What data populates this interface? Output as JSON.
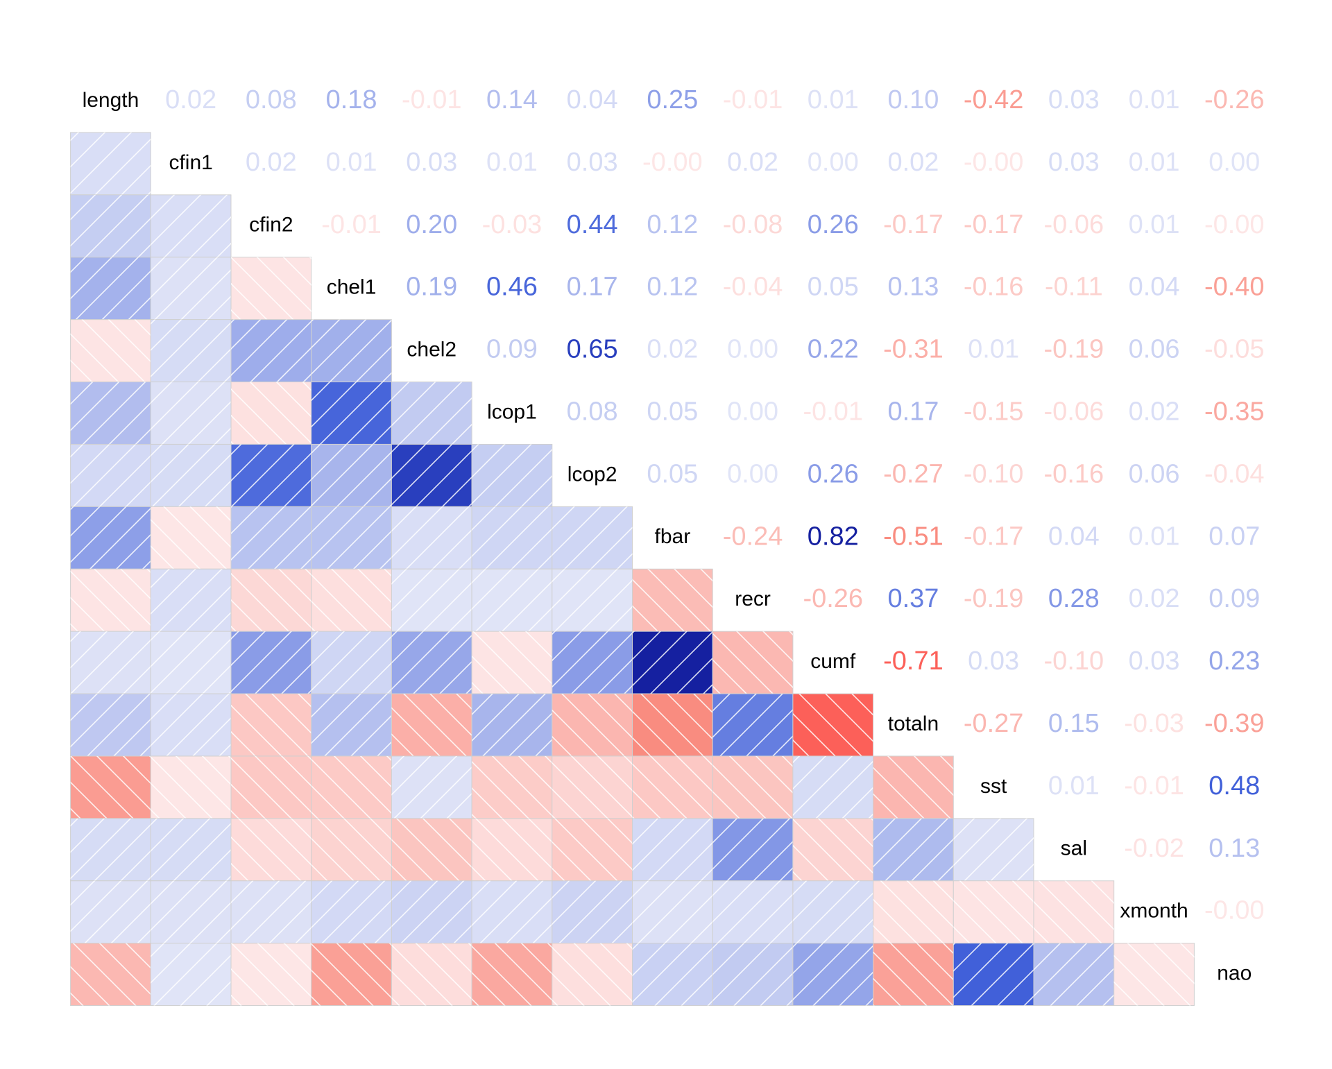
{
  "chart_data": {
    "type": "corrgram",
    "variables": [
      "length",
      "cfin1",
      "cfin2",
      "chel1",
      "chel2",
      "lcop1",
      "lcop2",
      "fbar",
      "recr",
      "cumf",
      "totaln",
      "sst",
      "sal",
      "xmonth",
      "nao"
    ],
    "values": [
      [
        0.02,
        0.08,
        0.18,
        -0.01,
        0.14,
        0.04,
        0.25,
        -0.01,
        0.01,
        0.1,
        -0.42,
        0.03,
        0.01,
        -0.26
      ],
      [
        0.02,
        0.01,
        0.03,
        0.01,
        0.03,
        -0.0,
        0.02,
        0.0,
        0.02,
        -0.0,
        0.03,
        0.01,
        0.0
      ],
      [
        -0.01,
        0.2,
        -0.03,
        0.44,
        0.12,
        -0.08,
        0.26,
        -0.17,
        -0.17,
        -0.06,
        0.01,
        -0.0
      ],
      [
        0.19,
        0.46,
        0.17,
        0.12,
        -0.04,
        0.05,
        0.13,
        -0.16,
        -0.11,
        0.04,
        -0.4
      ],
      [
        0.09,
        0.65,
        0.02,
        0.0,
        0.22,
        -0.31,
        0.01,
        -0.19,
        0.06,
        -0.05
      ],
      [
        0.08,
        0.05,
        0.0,
        -0.01,
        0.17,
        -0.15,
        -0.06,
        0.02,
        -0.35
      ],
      [
        0.05,
        0.0,
        0.26,
        -0.27,
        -0.1,
        -0.16,
        0.06,
        -0.04
      ],
      [
        -0.24,
        0.82,
        -0.51,
        -0.17,
        0.04,
        0.01,
        0.07
      ],
      [
        -0.26,
        0.37,
        -0.19,
        0.28,
        0.02,
        0.09
      ],
      [
        -0.71,
        0.03,
        -0.1,
        0.03,
        0.23
      ],
      [
        -0.27,
        0.15,
        -0.03,
        -0.39
      ],
      [
        0.01,
        -0.01,
        0.48
      ],
      [
        -0.02,
        0.13
      ],
      [
        -0.0
      ]
    ],
    "value_labels": [
      [
        "0.02",
        "0.08",
        "0.18",
        "-0.01",
        "0.14",
        "0.04",
        "0.25",
        "-0.01",
        "0.01",
        "0.10",
        "-0.42",
        "0.03",
        "0.01",
        "-0.26"
      ],
      [
        "0.02",
        "0.01",
        "0.03",
        "0.01",
        "0.03",
        "-0.00",
        "0.02",
        "0.00",
        "0.02",
        "-0.00",
        "0.03",
        "0.01",
        "0.00"
      ],
      [
        "-0.01",
        "0.20",
        "-0.03",
        "0.44",
        "0.12",
        "-0.08",
        "0.26",
        "-0.17",
        "-0.17",
        "-0.06",
        "0.01",
        "-0.00"
      ],
      [
        "0.19",
        "0.46",
        "0.17",
        "0.12",
        "-0.04",
        "0.05",
        "0.13",
        "-0.16",
        "-0.11",
        "0.04",
        "-0.40"
      ],
      [
        "0.09",
        "0.65",
        "0.02",
        "0.00",
        "0.22",
        "-0.31",
        "0.01",
        "-0.19",
        "0.06",
        "-0.05"
      ],
      [
        "0.08",
        "0.05",
        "0.00",
        "-0.01",
        "0.17",
        "-0.15",
        "-0.06",
        "0.02",
        "-0.35"
      ],
      [
        "0.05",
        "0.00",
        "0.26",
        "-0.27",
        "-0.10",
        "-0.16",
        "0.06",
        "-0.04"
      ],
      [
        "-0.24",
        "0.82",
        "-0.51",
        "-0.17",
        "0.04",
        "0.01",
        "0.07"
      ],
      [
        "-0.26",
        "0.37",
        "-0.19",
        "0.28",
        "0.02",
        "0.09"
      ],
      [
        "-0.71",
        "0.03",
        "-0.10",
        "0.03",
        "0.23"
      ],
      [
        "-0.27",
        "0.15",
        "-0.03",
        "-0.39"
      ],
      [
        "0.01",
        "-0.01",
        "0.48"
      ],
      [
        "-0.02",
        "0.13"
      ],
      [
        "-0.00"
      ]
    ],
    "positive_colors": [
      "#e0e4f7",
      "#3a5ad8",
      "#000080"
    ],
    "negative_colors": [
      "#fde6e6",
      "#f98e82",
      "#ff2020"
    ]
  }
}
